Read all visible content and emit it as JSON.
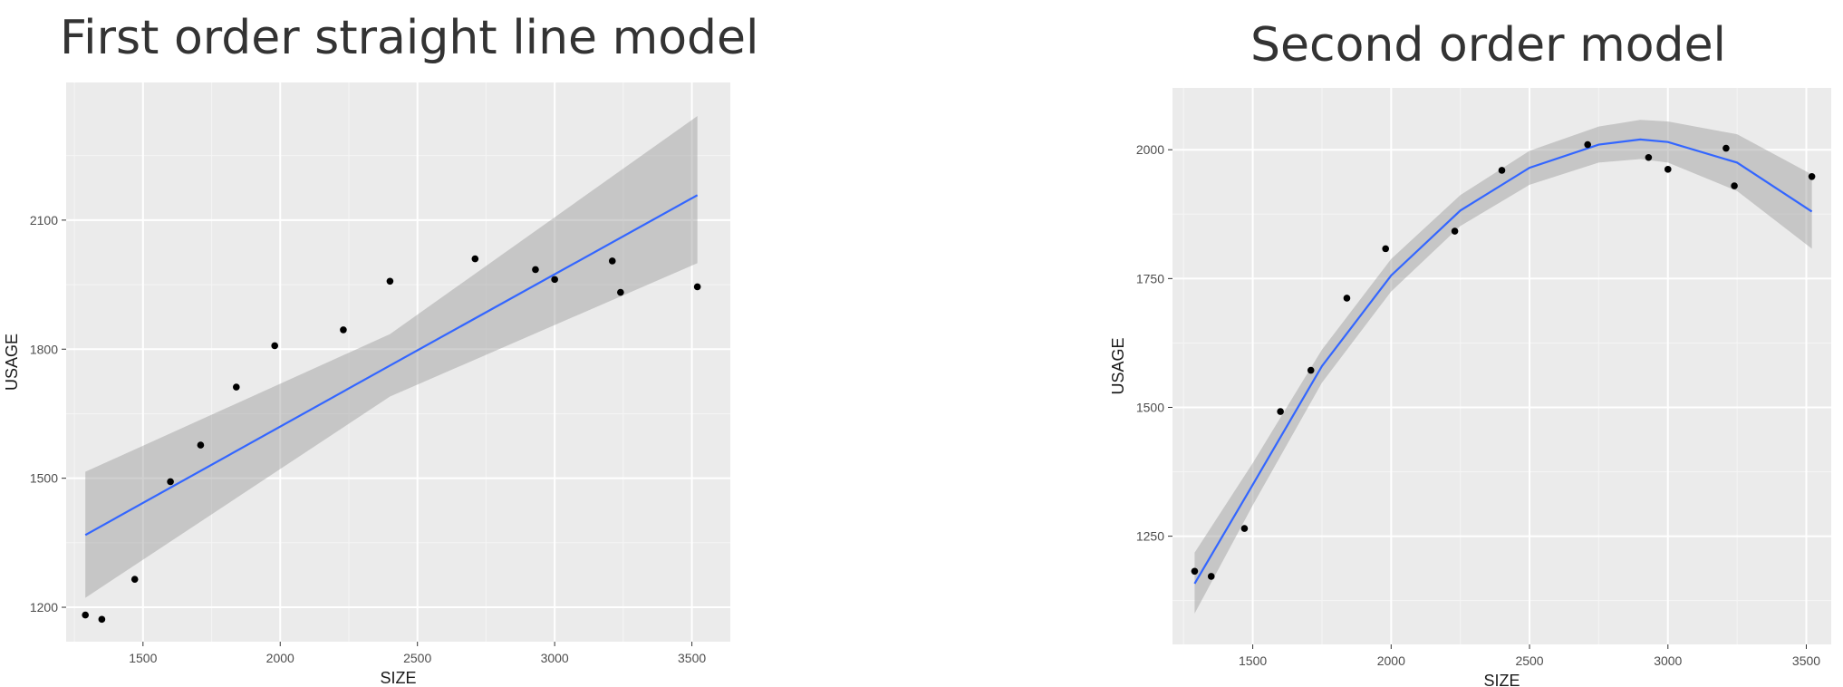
{
  "chart_data": [
    {
      "type": "scatter",
      "title": "First order straight line model",
      "xlabel": "SIZE",
      "ylabel": "USAGE",
      "xlim": [
        1220,
        3640
      ],
      "ylim": [
        1120,
        2420
      ],
      "x_ticks": [
        1500,
        2000,
        2500,
        3000,
        3500
      ],
      "y_ticks": [
        1200,
        1500,
        1800,
        2100
      ],
      "grid": true,
      "points": [
        {
          "x": 1290,
          "y": 1182
        },
        {
          "x": 1350,
          "y": 1172
        },
        {
          "x": 1470,
          "y": 1265
        },
        {
          "x": 1600,
          "y": 1492
        },
        {
          "x": 1710,
          "y": 1577
        },
        {
          "x": 1840,
          "y": 1712
        },
        {
          "x": 1980,
          "y": 1808
        },
        {
          "x": 2230,
          "y": 1845
        },
        {
          "x": 2400,
          "y": 1958
        },
        {
          "x": 2710,
          "y": 2010
        },
        {
          "x": 2930,
          "y": 1985
        },
        {
          "x": 3000,
          "y": 1962
        },
        {
          "x": 3210,
          "y": 2005
        },
        {
          "x": 3240,
          "y": 1932
        },
        {
          "x": 3520,
          "y": 1945
        }
      ],
      "fit": {
        "name": "linear fit",
        "x": [
          1290,
          2400,
          3520
        ],
        "y": [
          1368,
          1762,
          2158
        ],
        "lower": [
          1222,
          1690,
          2000
        ],
        "upper": [
          1515,
          1835,
          2342
        ]
      }
    },
    {
      "type": "scatter",
      "title": "Second order model",
      "xlabel": "SIZE",
      "ylabel": "USAGE",
      "xlim": [
        1210,
        3590
      ],
      "ylim": [
        1040,
        2120
      ],
      "x_ticks": [
        1500,
        2000,
        2500,
        3000,
        3500
      ],
      "y_ticks": [
        1250,
        1500,
        1750,
        2000
      ],
      "grid": true,
      "points": [
        {
          "x": 1290,
          "y": 1182
        },
        {
          "x": 1350,
          "y": 1172
        },
        {
          "x": 1470,
          "y": 1265
        },
        {
          "x": 1600,
          "y": 1492
        },
        {
          "x": 1710,
          "y": 1572
        },
        {
          "x": 1840,
          "y": 1712
        },
        {
          "x": 1980,
          "y": 1808
        },
        {
          "x": 2230,
          "y": 1842
        },
        {
          "x": 2400,
          "y": 1960
        },
        {
          "x": 2710,
          "y": 2010
        },
        {
          "x": 2930,
          "y": 1985
        },
        {
          "x": 3000,
          "y": 1962
        },
        {
          "x": 3210,
          "y": 2003
        },
        {
          "x": 3240,
          "y": 1930
        },
        {
          "x": 3520,
          "y": 1948
        }
      ],
      "fit": {
        "name": "quadratic fit",
        "x": [
          1290,
          1500,
          1750,
          2000,
          2250,
          2500,
          2750,
          2900,
          3000,
          3250,
          3520
        ],
        "y": [
          1158,
          1350,
          1580,
          1756,
          1882,
          1965,
          2010,
          2020,
          2015,
          1975,
          1880
        ],
        "lower": [
          1100,
          1310,
          1548,
          1725,
          1852,
          1932,
          1975,
          1982,
          1975,
          1920,
          1808
        ],
        "upper": [
          1218,
          1392,
          1612,
          1788,
          1912,
          1998,
          2045,
          2058,
          2055,
          2030,
          1952
        ]
      }
    }
  ]
}
